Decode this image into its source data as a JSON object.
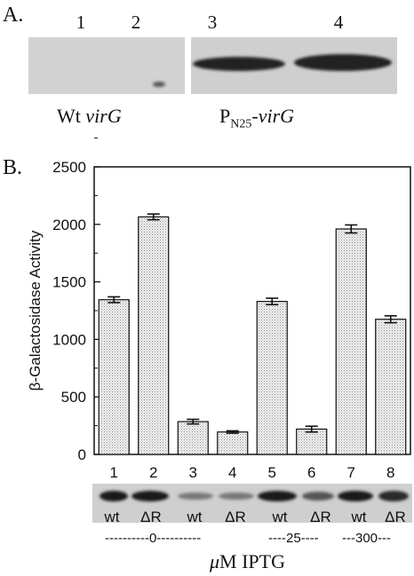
{
  "panel_a": {
    "label": "A.",
    "lanes": [
      "1",
      "2",
      "3",
      "4"
    ],
    "caption_left": {
      "text": "Wt ",
      "italic": "virG"
    },
    "caption_right": {
      "prefix": "P",
      "sub": "N25",
      "dash": "-",
      "italic": "virG"
    }
  },
  "panel_b": {
    "label": "B."
  },
  "chart_data": {
    "type": "bar",
    "categories": [
      "1",
      "2",
      "3",
      "4",
      "5",
      "6",
      "7",
      "8"
    ],
    "values": [
      1345,
      2065,
      285,
      195,
      1330,
      220,
      1960,
      1175
    ],
    "errors": [
      25,
      25,
      20,
      10,
      28,
      25,
      35,
      30
    ],
    "ylabel": "β-Galactosidase Activity",
    "ylim": [
      0,
      2500
    ],
    "yticks": [
      0,
      500,
      1000,
      1500,
      2000,
      2500
    ],
    "bar_fill": "dotted-grey",
    "grid": false
  },
  "bottom_blot": {
    "strains": [
      "wt",
      "ΔR",
      "wt",
      "ΔR",
      "wt",
      "ΔR",
      "wt",
      "ΔR"
    ],
    "groups": [
      {
        "text": "----------0----------"
      },
      {
        "text": "----25----"
      },
      {
        "text": "---300---"
      }
    ],
    "xlabel_unit": "μ",
    "xlabel_rest": "M IPTG"
  }
}
